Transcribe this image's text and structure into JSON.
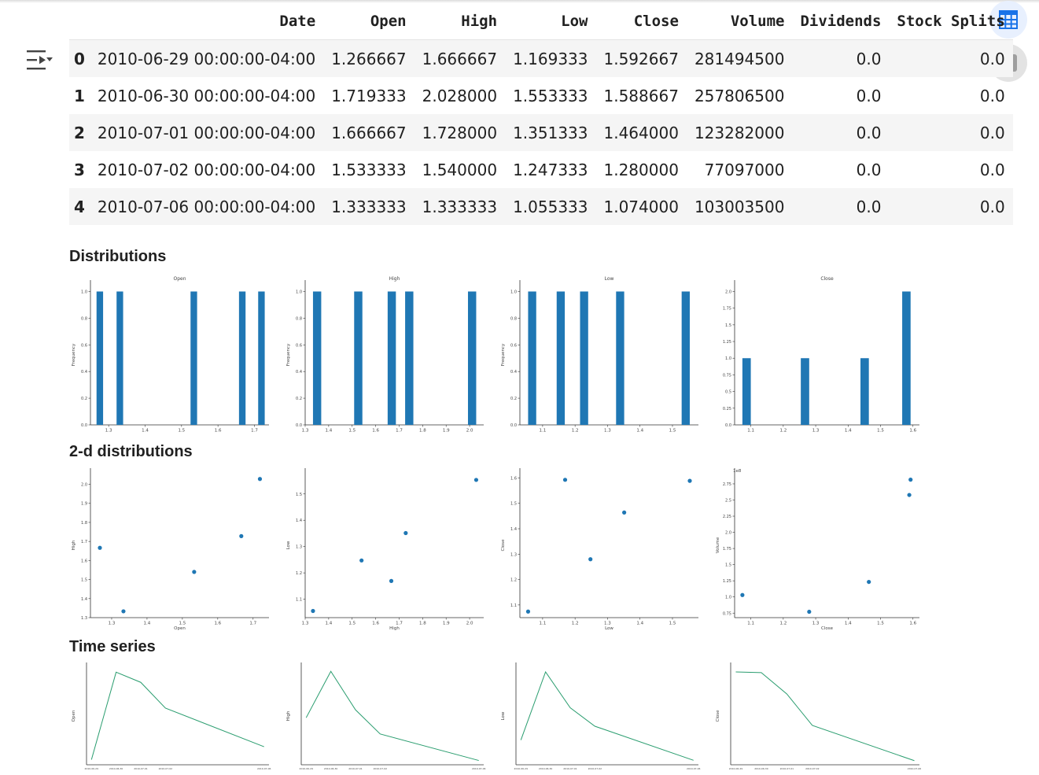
{
  "table": {
    "columns": [
      "",
      "Date",
      "Open",
      "High",
      "Low",
      "Close",
      "Volume",
      "Dividends",
      "Stock Splits"
    ],
    "rows": [
      [
        "0",
        "2010-06-29 00:00:00-04:00",
        "1.266667",
        "1.666667",
        "1.169333",
        "1.592667",
        "281494500",
        "0.0",
        "0.0"
      ],
      [
        "1",
        "2010-06-30 00:00:00-04:00",
        "1.719333",
        "2.028000",
        "1.553333",
        "1.588667",
        "257806500",
        "0.0",
        "0.0"
      ],
      [
        "2",
        "2010-07-01 00:00:00-04:00",
        "1.666667",
        "1.728000",
        "1.351333",
        "1.464000",
        "123282000",
        "0.0",
        "0.0"
      ],
      [
        "3",
        "2010-07-02 00:00:00-04:00",
        "1.533333",
        "1.540000",
        "1.247333",
        "1.280000",
        "77097000",
        "0.0",
        "0.0"
      ],
      [
        "4",
        "2010-07-06 00:00:00-04:00",
        "1.333333",
        "1.333333",
        "1.055333",
        "1.074000",
        "103003500",
        "0.0",
        "0.0"
      ]
    ]
  },
  "sections": {
    "distributions": "Distributions",
    "two_d": "2-d distributions",
    "time_series": "Time series"
  },
  "icons": {
    "left": "filter-list-icon",
    "table_button": "table-grid-icon",
    "chart_button": "bar-chart-icon"
  },
  "colors": {
    "bar": "#1f77b4",
    "point": "#1f77b4",
    "line": "#2a9d6f",
    "accent": "#1a73e8"
  },
  "chart_data": [
    {
      "type": "bar",
      "group": "distributions",
      "title": "Open",
      "ylabel": "Frequency",
      "bins": [
        [
          1.2667,
          1.2847
        ],
        [
          1.3217,
          1.3397
        ],
        [
          1.5247,
          1.5427
        ],
        [
          1.6577,
          1.6757
        ],
        [
          1.7103,
          1.7283
        ]
      ],
      "values": [
        1,
        1,
        1,
        1,
        1
      ],
      "xlim": [
        1.25,
        1.74
      ],
      "ylim": [
        0,
        1.05
      ],
      "xticks": [
        1.3,
        1.4,
        1.5,
        1.6,
        1.7
      ],
      "yticks": [
        0.0,
        0.2,
        0.4,
        0.6,
        0.8,
        1.0
      ]
    },
    {
      "type": "bar",
      "group": "distributions",
      "title": "High",
      "ylabel": "Frequency",
      "bins": [
        [
          1.3333,
          1.3683
        ],
        [
          1.5085,
          1.5435
        ],
        [
          1.6511,
          1.6861
        ],
        [
          1.7255,
          1.7605
        ],
        [
          1.993,
          2.028
        ]
      ],
      "values": [
        1,
        1,
        1,
        1,
        1
      ],
      "xlim": [
        1.3,
        2.06
      ],
      "ylim": [
        0,
        1.05
      ],
      "xticks": [
        1.3,
        1.4,
        1.5,
        1.6,
        1.7,
        1.8,
        1.9,
        2.0
      ],
      "yticks": [
        0.0,
        0.2,
        0.4,
        0.6,
        0.8,
        1.0
      ]
    },
    {
      "type": "bar",
      "group": "distributions",
      "title": "Low",
      "ylabel": "Frequency",
      "bins": [
        [
          1.0553,
          1.0803
        ],
        [
          1.1433,
          1.1683
        ],
        [
          1.2153,
          1.2403
        ],
        [
          1.3263,
          1.3513
        ],
        [
          1.5283,
          1.5533
        ]
      ],
      "values": [
        1,
        1,
        1,
        1,
        1
      ],
      "xlim": [
        1.03,
        1.58
      ],
      "ylim": [
        0,
        1.05
      ],
      "xticks": [
        1.1,
        1.2,
        1.3,
        1.4,
        1.5
      ],
      "yticks": [
        0.0,
        0.2,
        0.4,
        0.6,
        0.8,
        1.0
      ]
    },
    {
      "type": "bar",
      "group": "distributions",
      "title": "Close",
      "bins": [
        [
          1.074,
          1.0999
        ],
        [
          1.2541,
          1.28
        ],
        [
          1.4381,
          1.464
        ],
        [
          1.5668,
          1.5927
        ]
      ],
      "values": [
        1,
        1,
        1,
        2
      ],
      "xlim": [
        1.05,
        1.62
      ],
      "ylim": [
        0,
        2.1
      ],
      "xticks": [
        1.1,
        1.2,
        1.3,
        1.4,
        1.5,
        1.6
      ],
      "yticks": [
        0.0,
        0.25,
        0.5,
        0.75,
        1.0,
        1.25,
        1.5,
        1.75,
        2.0
      ]
    },
    {
      "type": "scatter",
      "group": "two_d",
      "xlabel": "Open",
      "ylabel": "High",
      "x": [
        1.266667,
        1.719333,
        1.666667,
        1.533333,
        1.333333
      ],
      "y": [
        1.666667,
        2.028,
        1.728,
        1.54,
        1.333333
      ],
      "xlim": [
        1.24,
        1.745
      ],
      "ylim": [
        1.3,
        2.06
      ],
      "xticks": [
        1.3,
        1.4,
        1.5,
        1.6,
        1.7
      ],
      "yticks": [
        1.3,
        1.4,
        1.5,
        1.6,
        1.7,
        1.8,
        1.9,
        2.0
      ]
    },
    {
      "type": "scatter",
      "group": "two_d",
      "xlabel": "High",
      "ylabel": "Low",
      "x": [
        1.666667,
        2.028,
        1.728,
        1.54,
        1.333333
      ],
      "y": [
        1.169333,
        1.553333,
        1.351333,
        1.247333,
        1.055333
      ],
      "xlim": [
        1.3,
        2.06
      ],
      "ylim": [
        1.03,
        1.58
      ],
      "xticks": [
        1.3,
        1.4,
        1.5,
        1.6,
        1.7,
        1.8,
        1.9,
        2.0
      ],
      "yticks": [
        1.1,
        1.2,
        1.3,
        1.4,
        1.5
      ]
    },
    {
      "type": "scatter",
      "group": "two_d",
      "xlabel": "Low",
      "ylabel": "Close",
      "x": [
        1.169333,
        1.553333,
        1.351333,
        1.247333,
        1.055333
      ],
      "y": [
        1.592667,
        1.588667,
        1.464,
        1.28,
        1.074
      ],
      "xlim": [
        1.03,
        1.58
      ],
      "ylim": [
        1.05,
        1.62
      ],
      "xticks": [
        1.1,
        1.2,
        1.3,
        1.4,
        1.5
      ],
      "yticks": [
        1.1,
        1.2,
        1.3,
        1.4,
        1.5,
        1.6
      ]
    },
    {
      "type": "scatter",
      "group": "two_d",
      "xlabel": "Close",
      "ylabel": "Volume",
      "offset_label": "1e8",
      "x": [
        1.592667,
        1.588667,
        1.464,
        1.28,
        1.074
      ],
      "y": [
        2.814945,
        2.578065,
        1.23282,
        0.77097,
        1.030035
      ],
      "xlim": [
        1.05,
        1.62
      ],
      "ylim": [
        0.68,
        2.92
      ],
      "xticks": [
        1.1,
        1.2,
        1.3,
        1.4,
        1.5,
        1.6
      ],
      "yticks": [
        0.75,
        1.0,
        1.25,
        1.5,
        1.75,
        2.0,
        2.25,
        2.5,
        2.75
      ]
    },
    {
      "type": "line",
      "group": "time_series",
      "ylabel": "Open",
      "x": [
        "2010-06-29",
        "2010-06-30",
        "2010-07-01",
        "2010-07-02",
        "2010-07-06"
      ],
      "y": [
        1.266667,
        1.719333,
        1.666667,
        1.533333,
        1.333333
      ],
      "ylim": [
        1.24,
        1.745
      ]
    },
    {
      "type": "line",
      "group": "time_series",
      "ylabel": "High",
      "x": [
        "2010-06-29",
        "2010-06-30",
        "2010-07-01",
        "2010-07-02",
        "2010-07-06"
      ],
      "y": [
        1.666667,
        2.028,
        1.728,
        1.54,
        1.333333
      ],
      "ylim": [
        1.3,
        2.06
      ]
    },
    {
      "type": "line",
      "group": "time_series",
      "ylabel": "Low",
      "x": [
        "2010-06-29",
        "2010-06-30",
        "2010-07-01",
        "2010-07-02",
        "2010-07-06"
      ],
      "y": [
        1.169333,
        1.553333,
        1.351333,
        1.247333,
        1.055333
      ],
      "ylim": [
        1.03,
        1.58
      ]
    },
    {
      "type": "line",
      "group": "time_series",
      "ylabel": "Close",
      "x": [
        "2010-06-29",
        "2010-06-30",
        "2010-07-01",
        "2010-07-02",
        "2010-07-06"
      ],
      "y": [
        1.592667,
        1.588667,
        1.464,
        1.28,
        1.074
      ],
      "ylim": [
        1.05,
        1.62
      ]
    }
  ]
}
